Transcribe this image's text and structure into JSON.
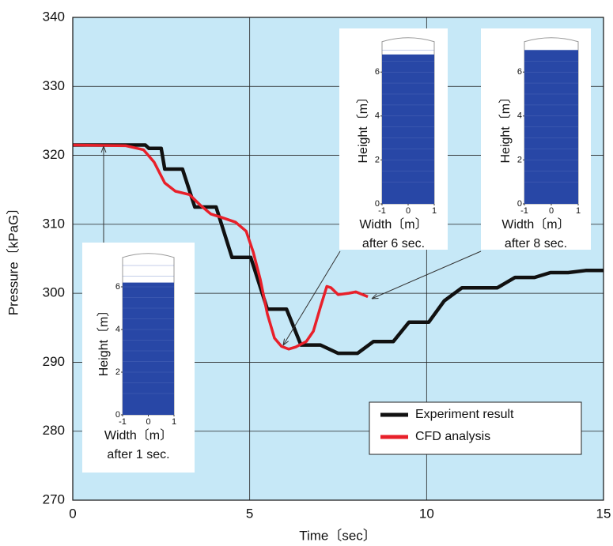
{
  "chart_data": {
    "type": "line",
    "xlabel": "Time〔sec〕",
    "ylabel": "Pressure〔kPaG〕",
    "xlim": [
      0,
      15
    ],
    "xticks": [
      0,
      5,
      10,
      15
    ],
    "ylim": [
      270,
      340
    ],
    "yticks": [
      270,
      280,
      290,
      300,
      310,
      320,
      330,
      340
    ],
    "grid": true,
    "legend": "lower right",
    "series": [
      {
        "name": "Experiment result",
        "color": "#111111",
        "x": [
          0,
          2.05,
          2.15,
          2.5,
          2.6,
          3.1,
          3.45,
          4.05,
          4.5,
          5.03,
          5.5,
          6.04,
          6.45,
          7.0,
          7.5,
          8.05,
          8.5,
          9.06,
          9.5,
          10.06,
          10.5,
          11,
          12,
          12.5,
          13.05,
          13.5,
          14,
          14.5,
          15
        ],
        "values": [
          321.5,
          321.5,
          321,
          321,
          318,
          318,
          312.5,
          312.5,
          305.2,
          305.2,
          297.7,
          297.7,
          292.5,
          292.5,
          291.3,
          291.3,
          293,
          293,
          295.8,
          295.8,
          298.9,
          300.8,
          300.8,
          302.3,
          302.3,
          303,
          303,
          303.3,
          303.3
        ]
      },
      {
        "name": "CFD analysis",
        "color": "#e8202a",
        "x": [
          0,
          1.5,
          2,
          2.3,
          2.6,
          2.9,
          3.3,
          3.6,
          3.9,
          4.2,
          4.6,
          4.9,
          5.1,
          5.3,
          5.5,
          5.7,
          5.9,
          6.1,
          6.3,
          6.6,
          6.8,
          7.0,
          7.18,
          7.3,
          7.5,
          7.8,
          8.0,
          8.34
        ],
        "values": [
          321.5,
          321.4,
          320.8,
          319,
          316,
          314.8,
          314.3,
          312.8,
          311.5,
          311,
          310.3,
          309,
          306,
          302,
          297,
          293.5,
          292.3,
          291.9,
          292.2,
          293,
          294.5,
          298,
          301,
          300.8,
          299.8,
          300,
          300.2,
          299.5
        ]
      }
    ],
    "insets": [
      {
        "ylabel": "Height〔m〕",
        "xlabel": "Width〔m〕",
        "caption": "after 1 sec.",
        "xticks": [
          -1,
          0,
          1
        ],
        "yticks": [
          0,
          2,
          4,
          6
        ]
      },
      {
        "ylabel": "Height〔m〕",
        "xlabel": "Width〔m〕",
        "caption": "after 6 sec.",
        "xticks": [
          -1,
          0,
          1
        ],
        "yticks": [
          0,
          2,
          4,
          6
        ]
      },
      {
        "ylabel": "Height〔m〕",
        "xlabel": "Width〔m〕",
        "caption": "after 8 sec.",
        "xticks": [
          -1,
          0,
          1
        ],
        "yticks": [
          0,
          2,
          4,
          6
        ]
      }
    ]
  }
}
